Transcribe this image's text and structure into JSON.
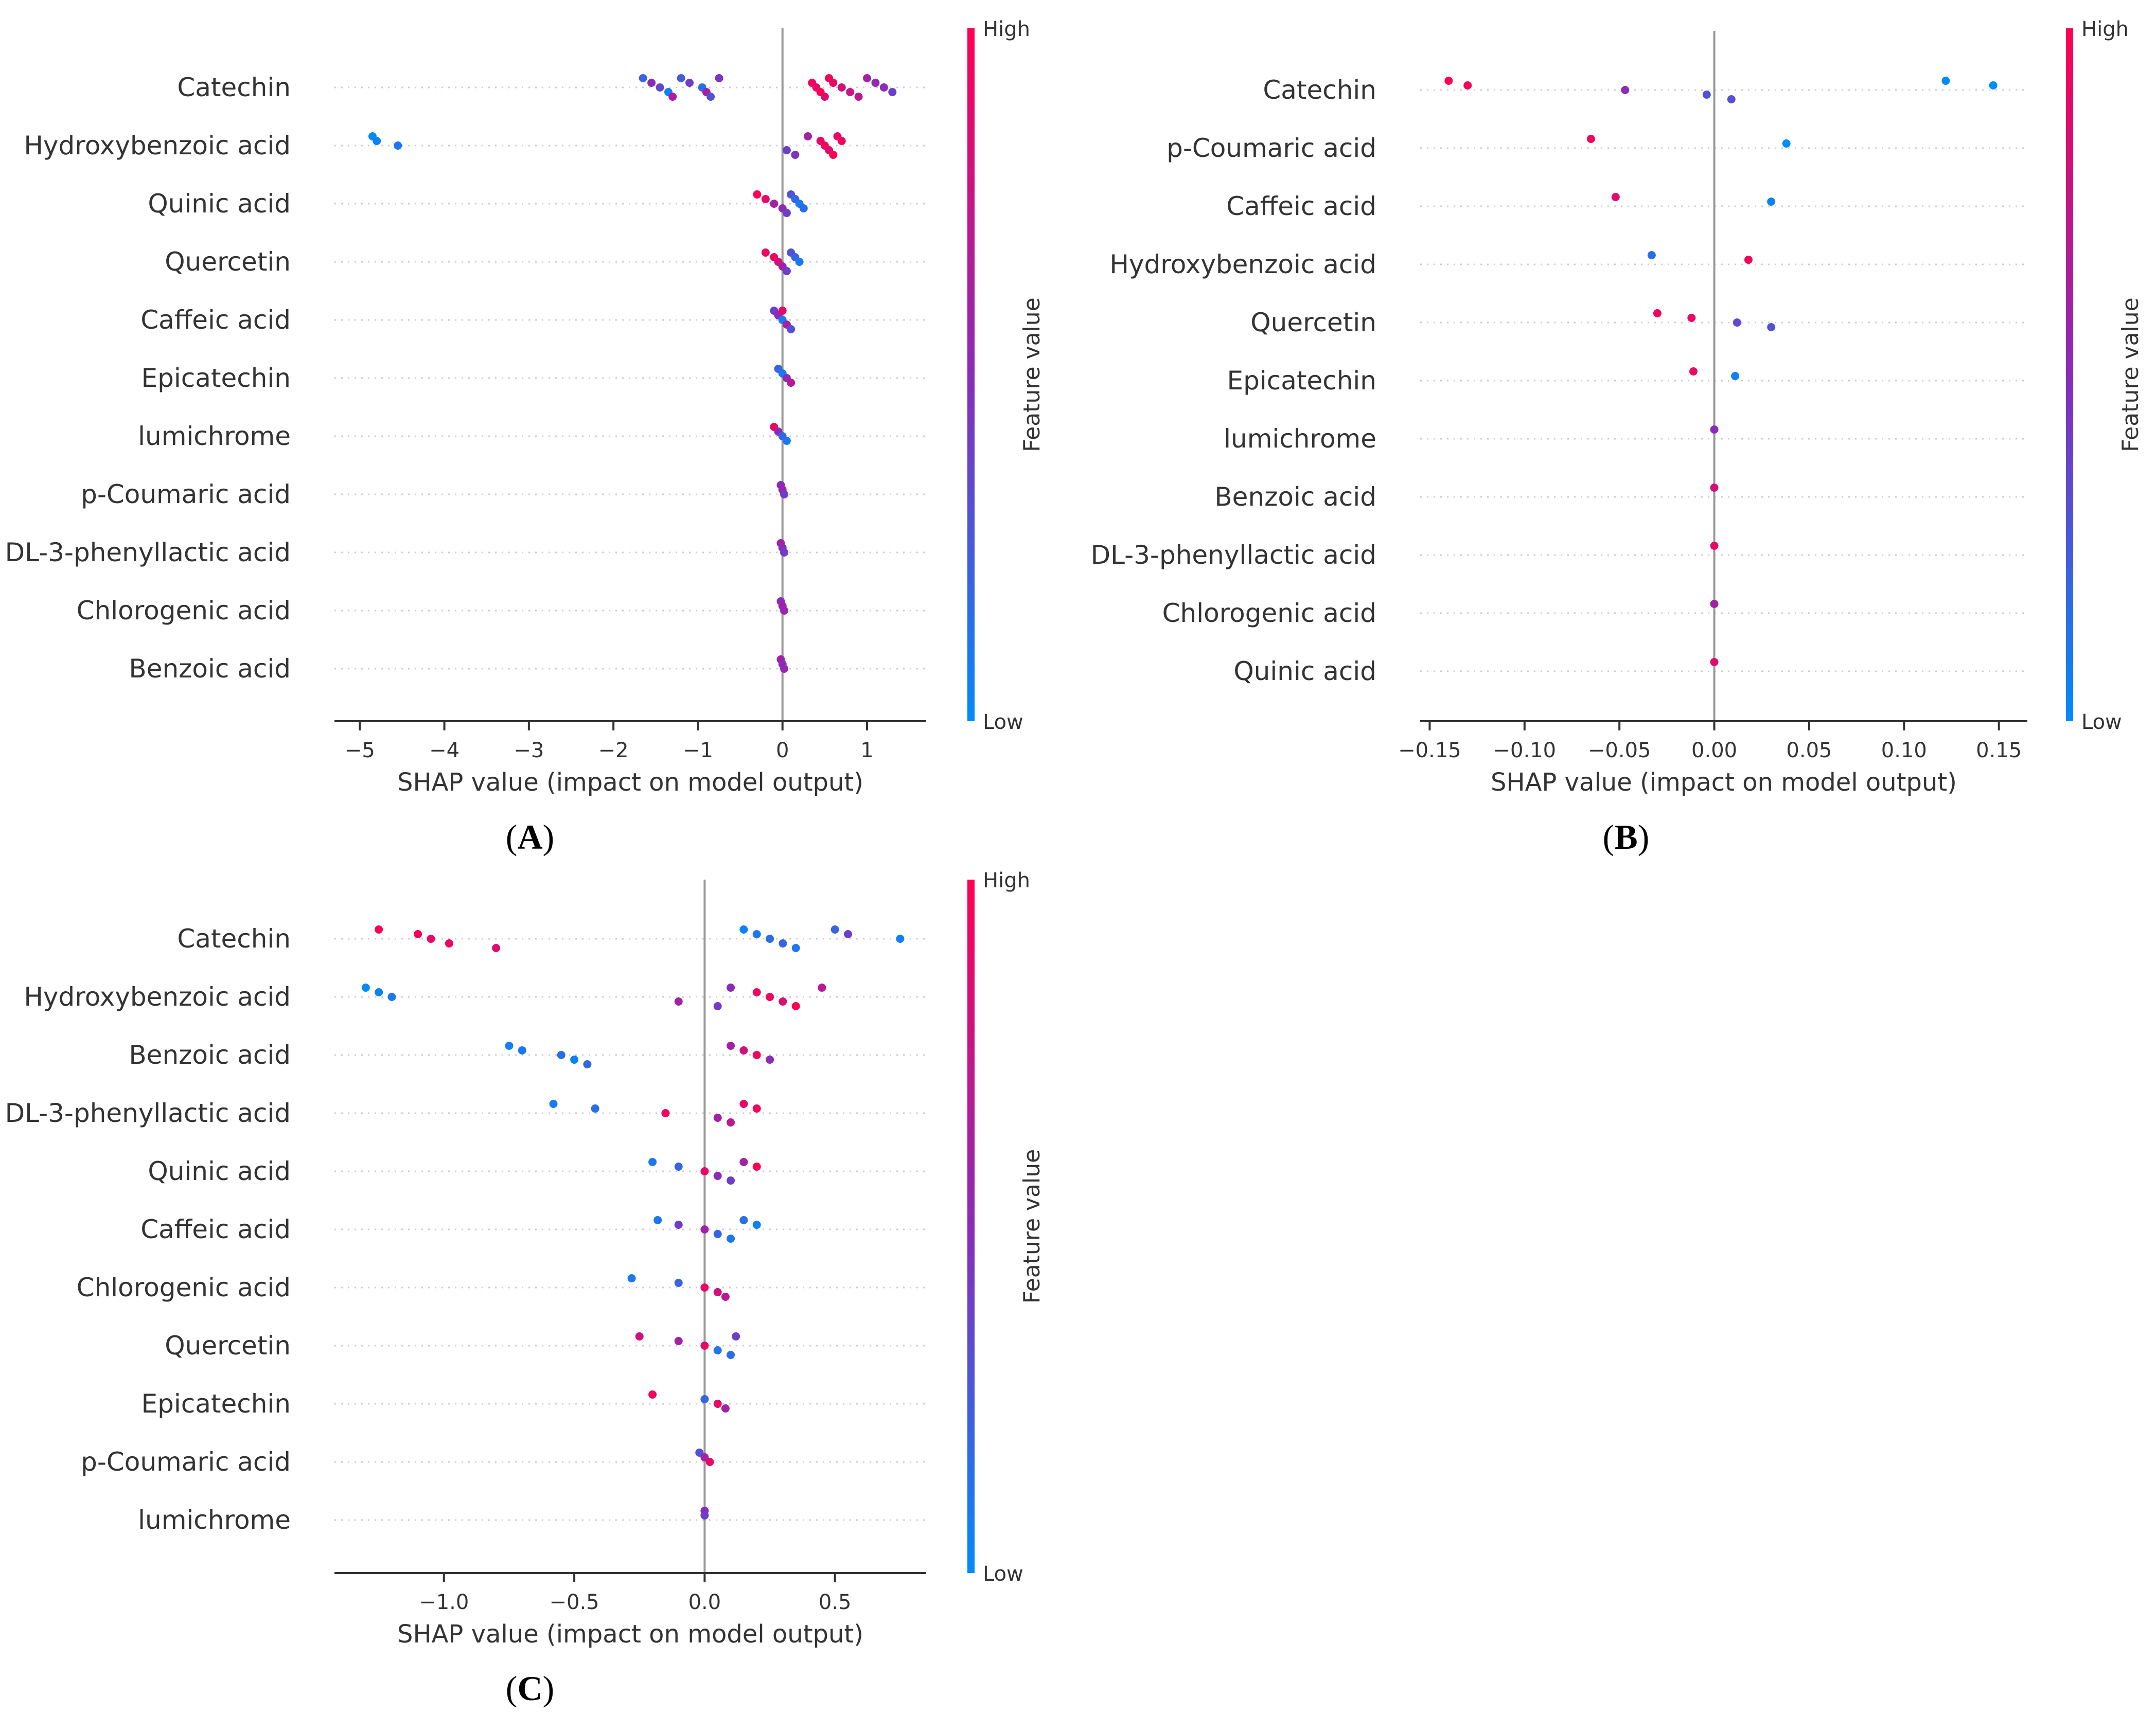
{
  "figure": {
    "colorbar": {
      "high": "High",
      "low": "Low",
      "title": "Feature value"
    }
  },
  "colors": {
    "low": "#008bfb",
    "high": "#ff0052",
    "axis": "#333333",
    "grid": "#cccccc",
    "zero": "#999999"
  },
  "chart_data": [
    {
      "type": "scatter",
      "subtype": "shap-beeswarm",
      "panel": "A",
      "title": "",
      "xlabel": "SHAP value (impact on model output)",
      "xlim": [
        -5.3,
        1.7
      ],
      "xticks": [
        -5,
        -4,
        -3,
        -2,
        -1,
        0,
        1
      ],
      "xtick_labels": [
        "−5",
        "−4",
        "−3",
        "−2",
        "−1",
        "0",
        "1"
      ],
      "features": [
        {
          "name": "Catechin",
          "points": [
            [
              -1.65,
              0.2
            ],
            [
              -1.55,
              0.5
            ],
            [
              -1.45,
              0.35
            ],
            [
              -1.35,
              0.05
            ],
            [
              -1.3,
              0.65
            ],
            [
              -1.2,
              0.25
            ],
            [
              -1.1,
              0.4
            ],
            [
              -0.95,
              0.15
            ],
            [
              -0.9,
              0.6
            ],
            [
              -0.85,
              0.3
            ],
            [
              -0.75,
              0.45
            ],
            [
              0.35,
              0.95
            ],
            [
              0.4,
              0.9
            ],
            [
              0.45,
              1.0
            ],
            [
              0.5,
              0.85
            ],
            [
              0.55,
              0.95
            ],
            [
              0.6,
              0.9
            ],
            [
              0.7,
              0.8
            ],
            [
              0.8,
              0.75
            ],
            [
              0.9,
              0.7
            ],
            [
              1.0,
              0.6
            ],
            [
              1.1,
              0.55
            ],
            [
              1.2,
              0.5
            ],
            [
              1.3,
              0.4
            ]
          ]
        },
        {
          "name": "Hydroxybenzoic acid",
          "points": [
            [
              -4.85,
              0.0
            ],
            [
              -4.8,
              0.05
            ],
            [
              -4.55,
              0.1
            ],
            [
              0.05,
              0.4
            ],
            [
              0.15,
              0.45
            ],
            [
              0.3,
              0.6
            ],
            [
              0.45,
              0.9
            ],
            [
              0.5,
              0.95
            ],
            [
              0.55,
              0.85
            ],
            [
              0.6,
              1.0
            ],
            [
              0.65,
              0.9
            ],
            [
              0.7,
              0.95
            ]
          ]
        },
        {
          "name": "Quinic acid",
          "points": [
            [
              -0.3,
              1.0
            ],
            [
              -0.2,
              0.9
            ],
            [
              -0.1,
              0.6
            ],
            [
              0.0,
              0.5
            ],
            [
              0.05,
              0.4
            ],
            [
              0.1,
              0.3
            ],
            [
              0.15,
              0.2
            ],
            [
              0.2,
              0.1
            ],
            [
              0.25,
              0.15
            ]
          ]
        },
        {
          "name": "Quercetin",
          "points": [
            [
              -0.2,
              0.9
            ],
            [
              -0.1,
              0.95
            ],
            [
              -0.05,
              0.8
            ],
            [
              0.0,
              0.6
            ],
            [
              0.05,
              0.4
            ],
            [
              0.1,
              0.3
            ],
            [
              0.15,
              0.2
            ],
            [
              0.2,
              0.1
            ]
          ]
        },
        {
          "name": "Caffeic acid",
          "points": [
            [
              -0.1,
              0.4
            ],
            [
              -0.05,
              0.5
            ],
            [
              0.0,
              0.1
            ],
            [
              0.05,
              0.6
            ],
            [
              0.1,
              0.3
            ],
            [
              0.0,
              0.9
            ]
          ]
        },
        {
          "name": "Epicatechin",
          "points": [
            [
              -0.05,
              0.2
            ],
            [
              0.0,
              0.1
            ],
            [
              0.05,
              0.5
            ],
            [
              0.1,
              0.7
            ]
          ]
        },
        {
          "name": "lumichrome",
          "points": [
            [
              -0.1,
              0.95
            ],
            [
              -0.05,
              0.5
            ],
            [
              0.0,
              0.2
            ],
            [
              0.05,
              0.1
            ]
          ]
        },
        {
          "name": "p-Coumaric acid",
          "points": [
            [
              -0.02,
              0.5
            ],
            [
              0.0,
              0.6
            ],
            [
              0.02,
              0.4
            ]
          ]
        },
        {
          "name": "DL-3-phenyllactic acid",
          "points": [
            [
              -0.02,
              0.6
            ],
            [
              0.0,
              0.5
            ],
            [
              0.02,
              0.4
            ]
          ]
        },
        {
          "name": "Chlorogenic acid",
          "points": [
            [
              -0.02,
              0.5
            ],
            [
              0.0,
              0.6
            ],
            [
              0.02,
              0.55
            ]
          ]
        },
        {
          "name": "Benzoic acid",
          "points": [
            [
              -0.02,
              0.6
            ],
            [
              0.0,
              0.5
            ],
            [
              0.02,
              0.55
            ]
          ]
        }
      ]
    },
    {
      "type": "scatter",
      "subtype": "shap-beeswarm",
      "panel": "B",
      "title": "",
      "xlabel": "SHAP value (impact on model output)",
      "xlim": [
        -0.155,
        0.165
      ],
      "xticks": [
        -0.15,
        -0.1,
        -0.05,
        0.0,
        0.05,
        0.1,
        0.15
      ],
      "xtick_labels": [
        "−0.15",
        "−0.10",
        "−0.05",
        "0.00",
        "0.05",
        "0.10",
        "0.15"
      ],
      "features": [
        {
          "name": "Catechin",
          "points": [
            [
              -0.14,
              1.0
            ],
            [
              -0.13,
              0.95
            ],
            [
              -0.047,
              0.5
            ],
            [
              -0.004,
              0.3
            ],
            [
              0.009,
              0.3
            ],
            [
              0.122,
              0.0
            ],
            [
              0.147,
              0.0
            ]
          ]
        },
        {
          "name": "p-Coumaric acid",
          "points": [
            [
              -0.065,
              0.95
            ],
            [
              0.038,
              0.0
            ]
          ]
        },
        {
          "name": "Caffeic acid",
          "points": [
            [
              -0.052,
              0.9
            ],
            [
              0.03,
              0.05
            ]
          ]
        },
        {
          "name": "Hydroxybenzoic acid",
          "points": [
            [
              -0.033,
              0.15
            ],
            [
              0.018,
              0.95
            ]
          ]
        },
        {
          "name": "Quercetin",
          "points": [
            [
              -0.03,
              0.95
            ],
            [
              -0.012,
              0.9
            ],
            [
              0.012,
              0.35
            ],
            [
              0.03,
              0.3
            ]
          ]
        },
        {
          "name": "Epicatechin",
          "points": [
            [
              -0.011,
              0.9
            ],
            [
              0.011,
              0.05
            ]
          ]
        },
        {
          "name": "lumichrome",
          "points": [
            [
              0.0,
              0.5
            ]
          ]
        },
        {
          "name": "Benzoic acid",
          "points": [
            [
              0.0,
              0.8
            ]
          ]
        },
        {
          "name": "DL-3-phenyllactic acid",
          "points": [
            [
              0.0,
              0.9
            ]
          ]
        },
        {
          "name": "Chlorogenic acid",
          "points": [
            [
              0.0,
              0.6
            ]
          ]
        },
        {
          "name": "Quinic acid",
          "points": [
            [
              0.0,
              0.85
            ]
          ]
        }
      ]
    },
    {
      "type": "scatter",
      "subtype": "shap-beeswarm",
      "panel": "C",
      "title": "",
      "xlabel": "SHAP value (impact on model output)",
      "xlim": [
        -1.42,
        0.85
      ],
      "xticks": [
        -1.0,
        -0.5,
        0.0,
        0.5
      ],
      "xtick_labels": [
        "−1.0",
        "−0.5",
        "0.0",
        "0.5"
      ],
      "features": [
        {
          "name": "Catechin",
          "points": [
            [
              -1.25,
              1.0
            ],
            [
              -1.1,
              0.95
            ],
            [
              -1.05,
              0.9
            ],
            [
              -0.98,
              0.95
            ],
            [
              -0.8,
              0.85
            ],
            [
              0.15,
              0.05
            ],
            [
              0.2,
              0.1
            ],
            [
              0.25,
              0.15
            ],
            [
              0.3,
              0.2
            ],
            [
              0.35,
              0.1
            ],
            [
              0.5,
              0.2
            ],
            [
              0.55,
              0.4
            ],
            [
              0.75,
              0.05
            ]
          ]
        },
        {
          "name": "Hydroxybenzoic acid",
          "points": [
            [
              -1.3,
              0.0
            ],
            [
              -1.25,
              0.05
            ],
            [
              -1.2,
              0.1
            ],
            [
              -0.1,
              0.6
            ],
            [
              0.05,
              0.4
            ],
            [
              0.1,
              0.5
            ],
            [
              0.2,
              0.9
            ],
            [
              0.25,
              0.95
            ],
            [
              0.3,
              0.85
            ],
            [
              0.35,
              1.0
            ],
            [
              0.45,
              0.7
            ]
          ]
        },
        {
          "name": "Benzoic acid",
          "points": [
            [
              -0.75,
              0.05
            ],
            [
              -0.7,
              0.1
            ],
            [
              -0.55,
              0.15
            ],
            [
              -0.5,
              0.05
            ],
            [
              -0.45,
              0.2
            ],
            [
              0.1,
              0.6
            ],
            [
              0.15,
              0.8
            ],
            [
              0.2,
              0.95
            ],
            [
              0.25,
              0.5
            ]
          ]
        },
        {
          "name": "DL-3-phenyllactic acid",
          "points": [
            [
              -0.58,
              0.1
            ],
            [
              -0.42,
              0.15
            ],
            [
              -0.15,
              0.95
            ],
            [
              0.05,
              0.6
            ],
            [
              0.1,
              0.7
            ],
            [
              0.15,
              0.9
            ],
            [
              0.2,
              0.95
            ]
          ]
        },
        {
          "name": "Quinic acid",
          "points": [
            [
              -0.2,
              0.1
            ],
            [
              -0.1,
              0.2
            ],
            [
              0.0,
              0.9
            ],
            [
              0.05,
              0.5
            ],
            [
              0.1,
              0.4
            ],
            [
              0.15,
              0.6
            ],
            [
              0.2,
              1.0
            ]
          ]
        },
        {
          "name": "Caffeic acid",
          "points": [
            [
              -0.18,
              0.1
            ],
            [
              -0.1,
              0.4
            ],
            [
              0.0,
              0.6
            ],
            [
              0.05,
              0.2
            ],
            [
              0.1,
              0.1
            ],
            [
              0.15,
              0.15
            ],
            [
              0.2,
              0.05
            ]
          ]
        },
        {
          "name": "Chlorogenic acid",
          "points": [
            [
              -0.28,
              0.1
            ],
            [
              -0.1,
              0.2
            ],
            [
              0.0,
              0.9
            ],
            [
              0.05,
              0.8
            ],
            [
              0.08,
              0.7
            ]
          ]
        },
        {
          "name": "Quercetin",
          "points": [
            [
              -0.25,
              0.8
            ],
            [
              -0.1,
              0.6
            ],
            [
              0.0,
              0.9
            ],
            [
              0.05,
              0.1
            ],
            [
              0.1,
              0.15
            ],
            [
              0.12,
              0.4
            ]
          ]
        },
        {
          "name": "Epicatechin",
          "points": [
            [
              -0.2,
              0.95
            ],
            [
              0.0,
              0.2
            ],
            [
              0.05,
              0.9
            ],
            [
              0.08,
              0.6
            ]
          ]
        },
        {
          "name": "p-Coumaric acid",
          "points": [
            [
              -0.02,
              0.3
            ],
            [
              0.0,
              0.6
            ],
            [
              0.02,
              0.9
            ]
          ]
        },
        {
          "name": "lumichrome",
          "points": [
            [
              0.0,
              0.5
            ],
            [
              0.0,
              0.4
            ]
          ]
        }
      ]
    }
  ]
}
